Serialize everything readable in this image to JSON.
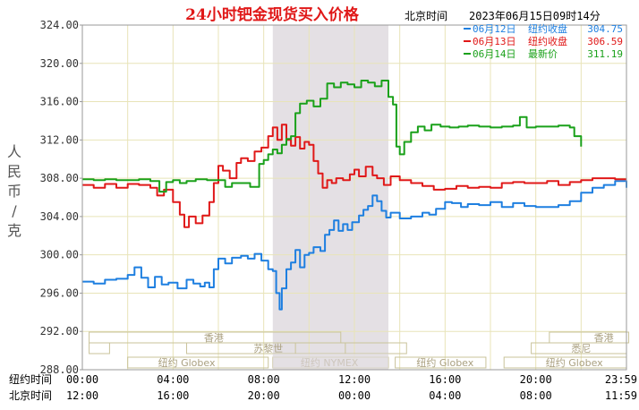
{
  "chart_data": {
    "type": "line",
    "title": "24小时钯金现货买入价格",
    "beijing_time_label": "北京时间",
    "timestamp": "2023年06月15日09时14分",
    "ylabel": "人民币/克",
    "ylim": [
      288,
      324
    ],
    "yticks": [
      "324.00",
      "320.00",
      "316.00",
      "312.00",
      "308.00",
      "304.00",
      "300.00",
      "296.00",
      "292.00",
      "288.00"
    ],
    "grid": true,
    "legend_position": "top-right",
    "x_rows": [
      {
        "label": "纽约时间",
        "ticks": [
          "00:00",
          "04:00",
          "08:00",
          "12:00",
          "16:00",
          "20:00",
          "23:59"
        ]
      },
      {
        "label": "北京时间",
        "ticks": [
          "12:00",
          "16:00",
          "20:00",
          "00:00",
          "04:00",
          "08:00",
          "11:59"
        ]
      }
    ],
    "x_hours": [
      0,
      4,
      8,
      12,
      16,
      20,
      24
    ],
    "highlight": {
      "from": 8.4,
      "to": 13.5
    },
    "markets_top": [
      "香港",
      "苏黎世",
      "悉尼",
      "香港"
    ],
    "markets_bottom": [
      "纽约 Globex",
      "纽约 NYMEX",
      "纽约 Globex",
      "纽约 Globex"
    ],
    "series": [
      {
        "name": "06月12日",
        "legend_label": "纽约收盘",
        "legend_value": "304.75",
        "color": "#1e7fe0",
        "points": [
          [
            0,
            297.2
          ],
          [
            0.5,
            297.0
          ],
          [
            1.0,
            297.4
          ],
          [
            1.5,
            297.5
          ],
          [
            2.0,
            297.9
          ],
          [
            2.3,
            298.7
          ],
          [
            2.6,
            297.6
          ],
          [
            2.9,
            296.6
          ],
          [
            3.2,
            297.7
          ],
          [
            3.5,
            296.9
          ],
          [
            3.8,
            297.1
          ],
          [
            4.2,
            296.5
          ],
          [
            4.6,
            297.4
          ],
          [
            4.9,
            297.0
          ],
          [
            5.2,
            296.7
          ],
          [
            5.4,
            297.1
          ],
          [
            5.6,
            296.6
          ],
          [
            5.8,
            298.5
          ],
          [
            6.0,
            299.6
          ],
          [
            6.3,
            299.1
          ],
          [
            6.6,
            299.7
          ],
          [
            7.0,
            299.9
          ],
          [
            7.3,
            299.6
          ],
          [
            7.6,
            300.1
          ],
          [
            7.9,
            299.4
          ],
          [
            8.2,
            298.5
          ],
          [
            8.4,
            298.3
          ],
          [
            8.55,
            296.0
          ],
          [
            8.7,
            294.3
          ],
          [
            8.8,
            296.5
          ],
          [
            9.0,
            298.5
          ],
          [
            9.2,
            299.2
          ],
          [
            9.4,
            300.5
          ],
          [
            9.6,
            298.7
          ],
          [
            9.8,
            300.0
          ],
          [
            10.0,
            300.2
          ],
          [
            10.2,
            300.8
          ],
          [
            10.5,
            300.4
          ],
          [
            10.7,
            302.1
          ],
          [
            10.9,
            302.6
          ],
          [
            11.1,
            303.6
          ],
          [
            11.3,
            302.5
          ],
          [
            11.5,
            303.2
          ],
          [
            11.7,
            302.6
          ],
          [
            11.9,
            303.4
          ],
          [
            12.2,
            304.1
          ],
          [
            12.4,
            304.7
          ],
          [
            12.6,
            305.1
          ],
          [
            12.8,
            306.2
          ],
          [
            13.0,
            305.6
          ],
          [
            13.2,
            304.6
          ],
          [
            13.4,
            303.9
          ],
          [
            13.6,
            304.4
          ],
          [
            14.0,
            303.8
          ],
          [
            14.5,
            304.0
          ],
          [
            15.0,
            304.4
          ],
          [
            15.3,
            304.2
          ],
          [
            15.6,
            304.8
          ],
          [
            16.0,
            305.5
          ],
          [
            16.3,
            305.4
          ],
          [
            16.7,
            305.0
          ],
          [
            17.0,
            305.3
          ],
          [
            17.5,
            305.2
          ],
          [
            18.0,
            305.5
          ],
          [
            18.5,
            305.0
          ],
          [
            19.0,
            305.4
          ],
          [
            19.5,
            305.1
          ],
          [
            20.0,
            305.0
          ],
          [
            20.5,
            305.0
          ],
          [
            21.0,
            305.2
          ],
          [
            21.5,
            305.6
          ],
          [
            22.0,
            306.5
          ],
          [
            22.5,
            307.0
          ],
          [
            23.0,
            307.3
          ],
          [
            23.5,
            307.7
          ],
          [
            24,
            307.0
          ]
        ]
      },
      {
        "name": "06月13日",
        "legend_label": "纽约收盘",
        "legend_value": "306.59",
        "color": "#e01818",
        "points": [
          [
            0,
            307.3
          ],
          [
            0.5,
            307.0
          ],
          [
            1.0,
            307.4
          ],
          [
            1.5,
            307.0
          ],
          [
            2.0,
            307.4
          ],
          [
            2.5,
            307.3
          ],
          [
            3.0,
            307.0
          ],
          [
            3.3,
            306.2
          ],
          [
            3.6,
            306.8
          ],
          [
            4.0,
            305.5
          ],
          [
            4.3,
            304.2
          ],
          [
            4.5,
            302.9
          ],
          [
            4.7,
            304.0
          ],
          [
            5.0,
            303.3
          ],
          [
            5.3,
            304.1
          ],
          [
            5.6,
            305.5
          ],
          [
            5.8,
            307.5
          ],
          [
            6.0,
            309.3
          ],
          [
            6.2,
            308.8
          ],
          [
            6.5,
            308.0
          ],
          [
            6.8,
            309.6
          ],
          [
            7.0,
            310.1
          ],
          [
            7.3,
            309.8
          ],
          [
            7.6,
            310.8
          ],
          [
            7.9,
            311.2
          ],
          [
            8.2,
            312.4
          ],
          [
            8.4,
            313.3
          ],
          [
            8.6,
            312.0
          ],
          [
            8.8,
            313.6
          ],
          [
            9.0,
            312.0
          ],
          [
            9.2,
            311.4
          ],
          [
            9.4,
            312.3
          ],
          [
            9.6,
            311.1
          ],
          [
            9.8,
            311.8
          ],
          [
            10.0,
            311.5
          ],
          [
            10.2,
            309.8
          ],
          [
            10.4,
            308.5
          ],
          [
            10.6,
            307.0
          ],
          [
            10.8,
            307.8
          ],
          [
            11.0,
            307.5
          ],
          [
            11.2,
            308.0
          ],
          [
            11.5,
            307.8
          ],
          [
            11.8,
            308.4
          ],
          [
            12.0,
            308.9
          ],
          [
            12.2,
            308.2
          ],
          [
            12.5,
            309.2
          ],
          [
            12.8,
            308.3
          ],
          [
            13.0,
            308.0
          ],
          [
            13.3,
            307.3
          ],
          [
            13.6,
            308.2
          ],
          [
            14.0,
            307.8
          ],
          [
            14.5,
            307.5
          ],
          [
            15.0,
            307.2
          ],
          [
            15.5,
            306.8
          ],
          [
            16.0,
            306.9
          ],
          [
            16.5,
            307.2
          ],
          [
            17.0,
            307.0
          ],
          [
            17.5,
            307.1
          ],
          [
            18.0,
            307.0
          ],
          [
            18.5,
            307.5
          ],
          [
            19.0,
            307.6
          ],
          [
            19.5,
            307.5
          ],
          [
            20.0,
            307.5
          ],
          [
            20.5,
            307.7
          ],
          [
            21.0,
            307.3
          ],
          [
            21.5,
            307.6
          ],
          [
            22.0,
            307.8
          ],
          [
            22.5,
            308.0
          ],
          [
            23.0,
            308.0
          ],
          [
            23.5,
            307.9
          ],
          [
            24,
            307.9
          ]
        ]
      },
      {
        "name": "06月14日",
        "legend_label": "最新价",
        "legend_value": "311.19",
        "color": "#1aa11a",
        "points": [
          [
            0,
            307.9
          ],
          [
            0.5,
            307.8
          ],
          [
            1.0,
            307.9
          ],
          [
            1.5,
            307.8
          ],
          [
            2.0,
            307.8
          ],
          [
            2.5,
            307.9
          ],
          [
            3.0,
            307.7
          ],
          [
            3.4,
            306.6
          ],
          [
            3.7,
            307.6
          ],
          [
            4.0,
            307.8
          ],
          [
            4.3,
            307.5
          ],
          [
            4.6,
            307.7
          ],
          [
            5.0,
            307.9
          ],
          [
            5.5,
            307.8
          ],
          [
            6.0,
            307.8
          ],
          [
            6.3,
            307.1
          ],
          [
            6.6,
            307.5
          ],
          [
            7.0,
            307.5
          ],
          [
            7.4,
            307.1
          ],
          [
            7.8,
            309.5
          ],
          [
            8.0,
            309.9
          ],
          [
            8.2,
            310.5
          ],
          [
            8.4,
            311.0
          ],
          [
            8.6,
            310.6
          ],
          [
            8.8,
            311.5
          ],
          [
            9.0,
            312.1
          ],
          [
            9.2,
            312.4
          ],
          [
            9.4,
            314.8
          ],
          [
            9.6,
            315.8
          ],
          [
            9.9,
            316.1
          ],
          [
            10.2,
            315.5
          ],
          [
            10.5,
            316.3
          ],
          [
            10.8,
            317.9
          ],
          [
            11.1,
            317.5
          ],
          [
            11.4,
            318.0
          ],
          [
            11.7,
            317.8
          ],
          [
            12.0,
            317.5
          ],
          [
            12.3,
            318.2
          ],
          [
            12.6,
            318.0
          ],
          [
            12.9,
            317.6
          ],
          [
            13.2,
            318.2
          ],
          [
            13.5,
            316.5
          ],
          [
            13.7,
            315.7
          ],
          [
            13.85,
            311.3
          ],
          [
            14.0,
            310.5
          ],
          [
            14.2,
            311.8
          ],
          [
            14.5,
            312.8
          ],
          [
            14.8,
            313.4
          ],
          [
            15.1,
            313.0
          ],
          [
            15.4,
            313.6
          ],
          [
            15.8,
            313.4
          ],
          [
            16.2,
            313.3
          ],
          [
            16.6,
            313.4
          ],
          [
            17.0,
            313.5
          ],
          [
            17.5,
            313.4
          ],
          [
            18.0,
            313.3
          ],
          [
            18.5,
            313.4
          ],
          [
            19.0,
            313.5
          ],
          [
            19.3,
            314.4
          ],
          [
            19.6,
            313.3
          ],
          [
            20.0,
            313.4
          ],
          [
            20.5,
            313.4
          ],
          [
            21.0,
            313.5
          ],
          [
            21.5,
            313.3
          ],
          [
            21.7,
            312.4
          ],
          [
            22.0,
            311.3
          ]
        ]
      }
    ]
  }
}
